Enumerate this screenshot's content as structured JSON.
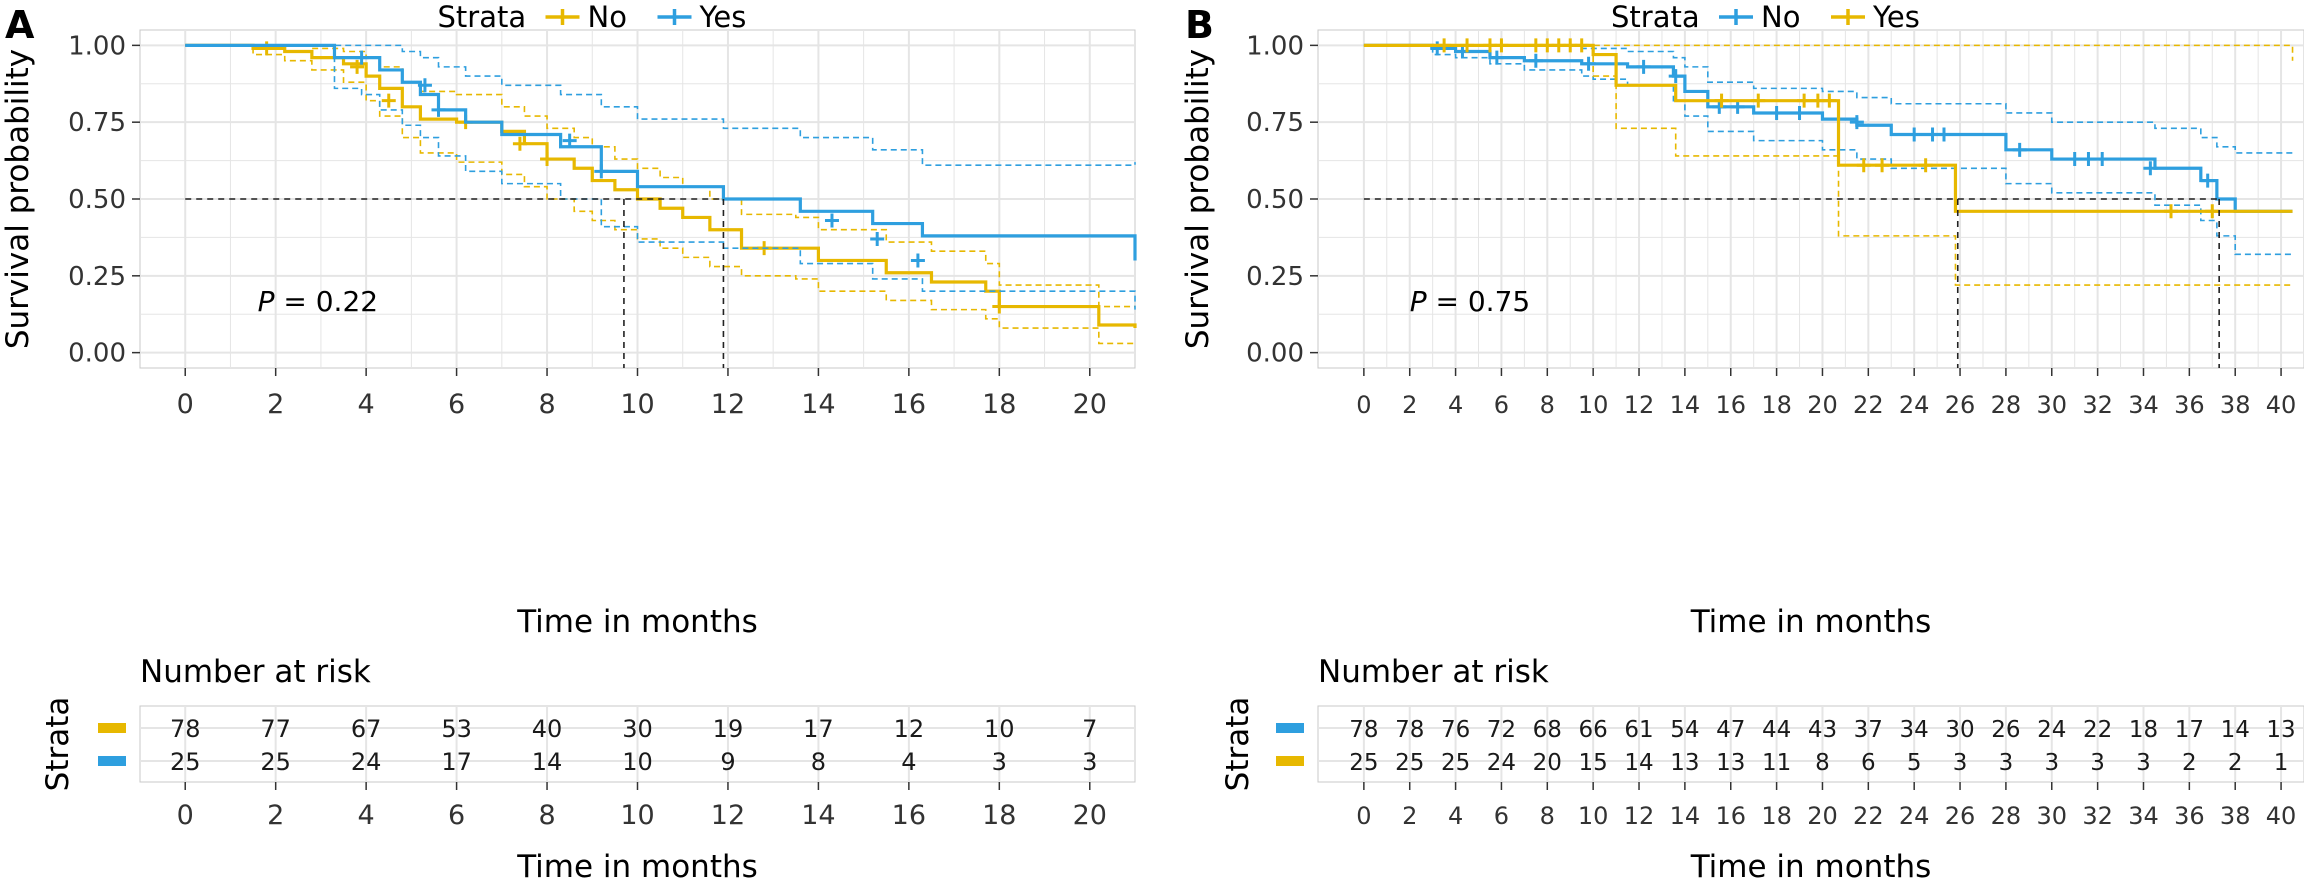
{
  "colors": {
    "yellow": "#E7B800",
    "blue": "#2E9FDF",
    "grid": "#e5e5e5",
    "panel_border": "#c8c8c8"
  },
  "chart_data": [
    {
      "panel_label": "A",
      "type": "line",
      "subtype": "kaplan-meier",
      "title": "",
      "xlabel": "Time in months",
      "ylabel": "Survival probability",
      "xlim": [
        -1,
        21
      ],
      "ylim": [
        -0.05,
        1.05
      ],
      "xticks": [
        0,
        2,
        4,
        6,
        8,
        10,
        12,
        14,
        16,
        18,
        20
      ],
      "yticks": [
        0.0,
        0.25,
        0.5,
        0.75,
        1.0
      ],
      "ytick_labels": [
        "0.00",
        "0.25",
        "0.50",
        "0.75",
        "1.00"
      ],
      "grid": true,
      "legend_title": "Strata",
      "legend_position": "top",
      "legend": [
        {
          "label": "No",
          "color": "#E7B800"
        },
        {
          "label": "Yes",
          "color": "#2E9FDF"
        }
      ],
      "p_value_label": "P",
      "p_value_text": " = 0.22",
      "median_line_y": 0.5,
      "medians": [
        9.7,
        11.9
      ],
      "series": [
        {
          "name": "No",
          "color": "#E7B800",
          "x": [
            0,
            1.5,
            2.2,
            2.8,
            3.5,
            4.0,
            4.3,
            4.8,
            5.2,
            6.0,
            7.0,
            7.5,
            8.0,
            8.6,
            9.0,
            9.5,
            10.0,
            10.5,
            11.0,
            11.6,
            12.3,
            13.5,
            14.0,
            15.5,
            16.5,
            17.7,
            18.0,
            20.2,
            21.0
          ],
          "y": [
            1.0,
            0.99,
            0.98,
            0.96,
            0.94,
            0.9,
            0.86,
            0.8,
            0.76,
            0.75,
            0.72,
            0.68,
            0.63,
            0.6,
            0.56,
            0.53,
            0.5,
            0.47,
            0.44,
            0.4,
            0.34,
            0.34,
            0.3,
            0.26,
            0.23,
            0.2,
            0.15,
            0.09,
            0.08
          ],
          "lower": [
            1.0,
            0.97,
            0.95,
            0.92,
            0.88,
            0.82,
            0.77,
            0.7,
            0.65,
            0.62,
            0.58,
            0.54,
            0.5,
            0.46,
            0.43,
            0.4,
            0.37,
            0.34,
            0.31,
            0.28,
            0.25,
            0.24,
            0.2,
            0.17,
            0.14,
            0.11,
            0.08,
            0.03,
            0.03
          ],
          "upper": [
            1.0,
            1.0,
            1.0,
            0.99,
            0.98,
            0.96,
            0.93,
            0.88,
            0.85,
            0.84,
            0.8,
            0.77,
            0.73,
            0.7,
            0.67,
            0.63,
            0.6,
            0.57,
            0.54,
            0.5,
            0.45,
            0.44,
            0.4,
            0.36,
            0.33,
            0.29,
            0.22,
            0.15,
            0.15
          ],
          "censor_x": [
            1.8,
            3.8,
            4.5,
            6.2,
            7.4,
            8.0,
            12.8,
            18.0
          ],
          "censor_y": [
            0.99,
            0.93,
            0.82,
            0.75,
            0.68,
            0.63,
            0.34,
            0.15
          ]
        },
        {
          "name": "Yes",
          "color": "#2E9FDF",
          "x": [
            0,
            3.3,
            3.9,
            4.3,
            4.8,
            5.2,
            5.6,
            6.2,
            7.0,
            8.3,
            9.2,
            10.0,
            11.9,
            13.6,
            15.2,
            16.3,
            21.0
          ],
          "y": [
            1.0,
            0.96,
            0.96,
            0.92,
            0.88,
            0.84,
            0.79,
            0.75,
            0.71,
            0.67,
            0.59,
            0.54,
            0.5,
            0.46,
            0.42,
            0.38,
            0.3
          ],
          "lower": [
            1.0,
            0.86,
            0.84,
            0.79,
            0.74,
            0.7,
            0.64,
            0.59,
            0.55,
            0.5,
            0.41,
            0.36,
            0.34,
            0.29,
            0.24,
            0.2,
            0.14
          ],
          "upper": [
            1.0,
            1.0,
            1.0,
            1.0,
            0.98,
            0.96,
            0.93,
            0.9,
            0.87,
            0.84,
            0.8,
            0.76,
            0.73,
            0.7,
            0.66,
            0.61,
            0.62
          ],
          "censor_x": [
            3.9,
            5.3,
            5.6,
            8.5,
            9.2,
            14.3,
            15.3,
            16.2
          ],
          "censor_y": [
            0.96,
            0.87,
            0.79,
            0.69,
            0.59,
            0.43,
            0.37,
            0.3
          ]
        }
      ],
      "risk_table": {
        "title": "Number at risk",
        "ylabel": "Strata",
        "xlabel": "Time in months",
        "times": [
          0,
          2,
          4,
          6,
          8,
          10,
          12,
          14,
          16,
          18,
          20
        ],
        "rows": [
          {
            "color": "#E7B800",
            "counts": [
              78,
              77,
              67,
              53,
              40,
              30,
              19,
              17,
              12,
              10,
              7
            ]
          },
          {
            "color": "#2E9FDF",
            "counts": [
              25,
              25,
              24,
              17,
              14,
              10,
              9,
              8,
              4,
              3,
              3
            ]
          }
        ]
      }
    },
    {
      "panel_label": "B",
      "type": "line",
      "subtype": "kaplan-meier",
      "title": "",
      "xlabel": "Time in months",
      "ylabel": "Survival probability",
      "xlim": [
        -2,
        41
      ],
      "ylim": [
        -0.05,
        1.05
      ],
      "xticks": [
        0,
        2,
        4,
        6,
        8,
        10,
        12,
        14,
        16,
        18,
        20,
        22,
        24,
        26,
        28,
        30,
        32,
        34,
        36,
        38,
        40
      ],
      "yticks": [
        0.0,
        0.25,
        0.5,
        0.75,
        1.0
      ],
      "ytick_labels": [
        "0.00",
        "0.25",
        "0.50",
        "0.75",
        "1.00"
      ],
      "grid": true,
      "legend_title": "Strata",
      "legend_position": "top",
      "legend": [
        {
          "label": "No",
          "color": "#2E9FDF"
        },
        {
          "label": "Yes",
          "color": "#E7B800"
        }
      ],
      "p_value_label": "P",
      "p_value_text": " = 0.75",
      "median_line_y": 0.5,
      "medians": [
        25.9,
        37.3
      ],
      "series": [
        {
          "name": "No",
          "color": "#2E9FDF",
          "x": [
            0,
            3.0,
            4.0,
            5.5,
            7.0,
            9.5,
            10.0,
            11.5,
            13.5,
            14.0,
            15.0,
            17.0,
            20.0,
            21.5,
            23.0,
            28.0,
            30.0,
            34.5,
            36.5,
            37.2,
            38.0,
            40.5
          ],
          "y": [
            1.0,
            0.99,
            0.98,
            0.96,
            0.95,
            0.94,
            0.94,
            0.93,
            0.9,
            0.85,
            0.8,
            0.78,
            0.76,
            0.74,
            0.71,
            0.66,
            0.63,
            0.6,
            0.56,
            0.5,
            0.46,
            0.46
          ],
          "lower": [
            1.0,
            0.97,
            0.96,
            0.94,
            0.92,
            0.9,
            0.89,
            0.87,
            0.82,
            0.77,
            0.72,
            0.69,
            0.66,
            0.63,
            0.6,
            0.55,
            0.52,
            0.48,
            0.43,
            0.38,
            0.32,
            0.32
          ],
          "upper": [
            1.0,
            1.0,
            1.0,
            1.0,
            1.0,
            0.99,
            0.99,
            0.98,
            0.96,
            0.93,
            0.88,
            0.86,
            0.85,
            0.83,
            0.81,
            0.78,
            0.75,
            0.73,
            0.7,
            0.67,
            0.65,
            0.65
          ],
          "censor_x": [
            3.2,
            4.3,
            5.8,
            7.5,
            9.8,
            12.2,
            13.6,
            15.5,
            16.3,
            18.0,
            19.0,
            21.5,
            24.0,
            24.8,
            25.3,
            28.6,
            31.0,
            31.6,
            32.2,
            34.3,
            36.8
          ],
          "censor_y": [
            0.99,
            0.98,
            0.96,
            0.95,
            0.94,
            0.93,
            0.9,
            0.8,
            0.8,
            0.78,
            0.78,
            0.75,
            0.71,
            0.71,
            0.71,
            0.66,
            0.63,
            0.63,
            0.63,
            0.6,
            0.56
          ]
        },
        {
          "name": "Yes",
          "color": "#E7B800",
          "x": [
            0,
            10.0,
            11.0,
            13.6,
            20.7,
            25.8,
            40.5
          ],
          "y": [
            1.0,
            0.97,
            0.87,
            0.82,
            0.61,
            0.46,
            0.46
          ],
          "lower": [
            1.0,
            0.9,
            0.73,
            0.64,
            0.38,
            0.22,
            0.22
          ],
          "upper": [
            1.0,
            1.0,
            1.0,
            1.0,
            1.0,
            1.0,
            0.95
          ],
          "censor_x": [
            3.5,
            4.5,
            5.5,
            6.0,
            7.5,
            8.0,
            8.5,
            9.0,
            9.5,
            15.6,
            17.2,
            19.2,
            19.8,
            20.3,
            21.8,
            22.6,
            24.5,
            35.2,
            37.0
          ],
          "censor_y": [
            1.0,
            1.0,
            1.0,
            1.0,
            1.0,
            1.0,
            1.0,
            1.0,
            1.0,
            0.82,
            0.82,
            0.82,
            0.82,
            0.82,
            0.61,
            0.61,
            0.61,
            0.46,
            0.46
          ]
        }
      ],
      "risk_table": {
        "title": "Number at risk",
        "ylabel": "Strata",
        "xlabel": "Time in months",
        "times": [
          0,
          2,
          4,
          6,
          8,
          10,
          12,
          14,
          16,
          18,
          20,
          22,
          24,
          26,
          28,
          30,
          32,
          34,
          36,
          38,
          40
        ],
        "rows": [
          {
            "color": "#2E9FDF",
            "counts": [
              78,
              78,
              76,
              72,
              68,
              66,
              61,
              54,
              47,
              44,
              43,
              37,
              34,
              30,
              26,
              24,
              22,
              18,
              17,
              14,
              13
            ]
          },
          {
            "color": "#E7B800",
            "counts": [
              25,
              25,
              25,
              24,
              20,
              15,
              14,
              13,
              13,
              11,
              8,
              6,
              5,
              3,
              3,
              3,
              3,
              3,
              2,
              2,
              1
            ]
          }
        ]
      }
    }
  ]
}
